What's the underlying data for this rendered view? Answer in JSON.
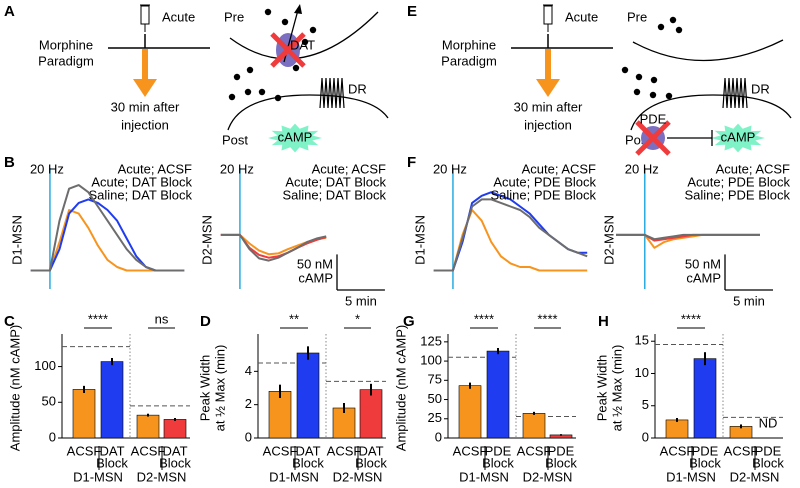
{
  "diagrams": [
    {
      "letter": "A",
      "treatment": "Acute",
      "paradigm": [
        "Morphine",
        "Paradigm"
      ],
      "timing": [
        "30 min after",
        "injection"
      ],
      "pre": "Pre",
      "post": "Post",
      "target": "DAT",
      "receptor": "DR",
      "messenger": "cAMP"
    },
    {
      "letter": "E",
      "treatment": "Acute",
      "paradigm": [
        "Morphine",
        "Paradigm"
      ],
      "timing": [
        "30 min after",
        "injection"
      ],
      "pre": "Pre",
      "post": "Post",
      "target": "PDE",
      "receptor": "DR",
      "messenger": "cAMP"
    }
  ],
  "chart_data": [
    {
      "type": "line",
      "panel": "B",
      "stim_label": "20 Hz",
      "ylabel": "D1-MSN",
      "x": [
        -2,
        -1,
        0,
        1,
        2,
        3,
        4,
        5,
        6,
        7,
        8,
        9,
        10,
        11,
        12,
        13,
        14
      ],
      "xlim": [
        -2.6,
        14.6
      ],
      "ylim": [
        -40,
        130
      ],
      "series": [
        {
          "name": "Acute; ACSF",
          "color": "#f7941d",
          "values": [
            0,
            0,
            0,
            40,
            85,
            80,
            60,
            35,
            15,
            5,
            0,
            0,
            0,
            0,
            0,
            0,
            0
          ]
        },
        {
          "name": "Acute; DAT Block",
          "color": "#1f3cf0",
          "values": [
            0,
            0,
            0,
            30,
            80,
            95,
            100,
            95,
            85,
            70,
            45,
            20,
            5,
            0,
            0,
            0,
            0
          ]
        },
        {
          "name": "Saline; DAT Block",
          "color": "#6d6d6d",
          "values": [
            0,
            0,
            0,
            70,
            115,
            120,
            110,
            90,
            70,
            50,
            30,
            15,
            5,
            0,
            0,
            0,
            0
          ]
        }
      ]
    },
    {
      "type": "line",
      "stim_label": "20 Hz",
      "ylabel": "D2-MSN",
      "x": [
        -2,
        -1,
        0,
        1,
        2,
        3,
        4,
        5,
        6,
        7,
        8,
        9
      ],
      "xlim": [
        -2.6,
        9.4
      ],
      "ylim": [
        -90,
        80
      ],
      "series": [
        {
          "name": "Acute; ACSF",
          "color": "#f7941d",
          "values": [
            0,
            0,
            0,
            -12,
            -22,
            -27,
            -26,
            -20,
            -15,
            -10,
            -6,
            -4
          ]
        },
        {
          "name": "Acute; DAT Block",
          "color": "#ef3b3b",
          "values": [
            0,
            0,
            0,
            -18,
            -28,
            -32,
            -30,
            -25,
            -18,
            -12,
            -7,
            -3
          ]
        },
        {
          "name": "Saline; DAT Block",
          "color": "#6d6d6d",
          "values": [
            0,
            0,
            0,
            -20,
            -33,
            -36,
            -32,
            -25,
            -18,
            -10,
            -5,
            -2
          ]
        }
      ],
      "scale_bar": {
        "y_value": 50,
        "y_label": [
          "50 nM",
          "cAMP"
        ],
        "x_value": 5,
        "x_label": "5 min"
      }
    },
    {
      "type": "line",
      "panel": "F",
      "stim_label": "20 Hz",
      "ylabel": "D1-MSN",
      "x": [
        -2,
        -1,
        0,
        1,
        2,
        3,
        4,
        5,
        6,
        7,
        8,
        9,
        10,
        11,
        12,
        13,
        14
      ],
      "xlim": [
        -2.6,
        14.6
      ],
      "ylim": [
        -40,
        130
      ],
      "series": [
        {
          "name": "Acute; ACSF",
          "color": "#f7941d",
          "values": [
            0,
            0,
            0,
            50,
            85,
            70,
            40,
            20,
            10,
            5,
            5,
            0,
            0,
            0,
            0,
            0,
            0
          ]
        },
        {
          "name": "Acute; PDE Block",
          "color": "#1f3cf0",
          "values": [
            0,
            0,
            0,
            40,
            95,
            105,
            110,
            105,
            100,
            90,
            80,
            65,
            50,
            40,
            30,
            25,
            25
          ]
        },
        {
          "name": "Saline; PDE Block",
          "color": "#6d6d6d",
          "values": [
            0,
            0,
            0,
            45,
            90,
            100,
            100,
            95,
            90,
            85,
            75,
            60,
            50,
            40,
            30,
            25,
            20
          ]
        }
      ]
    },
    {
      "type": "line",
      "stim_label": "20 Hz",
      "ylabel": "D2-MSN",
      "x": [
        -3,
        -2,
        -1,
        0,
        1,
        2,
        3,
        4,
        5,
        6,
        7,
        8,
        9,
        10,
        11,
        12
      ],
      "xlim": [
        -3.1,
        12
      ],
      "ylim": [
        -90,
        80
      ],
      "series": [
        {
          "name": "Acute; ACSF",
          "color": "#f7941d",
          "values": [
            0,
            0,
            0,
            0,
            -18,
            -10,
            -6,
            -4,
            -2,
            0,
            0,
            0,
            0,
            0,
            0,
            0
          ]
        },
        {
          "name": "Acute; PDE Block",
          "color": "#ef3b3b",
          "values": [
            0,
            0,
            0,
            0,
            -8,
            -6,
            -4,
            -2,
            0,
            0,
            0,
            0,
            0,
            0,
            0,
            0
          ]
        },
        {
          "name": "Saline; PDE Block",
          "color": "#6d6d6d",
          "values": [
            0,
            0,
            0,
            0,
            -6,
            -4,
            -2,
            0,
            0,
            0,
            0,
            0,
            0,
            0,
            0,
            0
          ]
        }
      ],
      "scale_bar": {
        "y_value": 50,
        "y_label": [
          "50 nM",
          "cAMP"
        ],
        "x_value": 5,
        "x_label": "5 min"
      }
    },
    {
      "type": "bar",
      "panel": "C",
      "ylabel": [
        "Amplitude (nM cAMP)"
      ],
      "ylim": [
        0,
        140
      ],
      "yticks": [
        0,
        50,
        100
      ],
      "groups": [
        {
          "name": "D1-MSN",
          "categories": [
            [
              "ACSF"
            ],
            [
              "DAT",
              "Block"
            ]
          ],
          "colors": [
            "#f7941d",
            "#1f3cf0"
          ],
          "values": [
            68,
            107
          ],
          "errors": [
            5,
            5
          ],
          "reference": 128,
          "significance": "****"
        },
        {
          "name": "D2-MSN",
          "categories": [
            [
              "ACSF"
            ],
            [
              "DAT",
              "Block"
            ]
          ],
          "colors": [
            "#f7941d",
            "#ef3b3b"
          ],
          "values": [
            32,
            26
          ],
          "errors": [
            2,
            2
          ],
          "reference": 45,
          "significance": "ns"
        }
      ]
    },
    {
      "type": "bar",
      "panel": "D",
      "ylabel": [
        "Peak Width",
        "at ½ Max (min)"
      ],
      "ylim": [
        0,
        6
      ],
      "yticks": [
        0,
        2,
        4
      ],
      "groups": [
        {
          "name": "D1-MSN",
          "categories": [
            [
              "ACSF"
            ],
            [
              "DAT",
              "Block"
            ]
          ],
          "colors": [
            "#f7941d",
            "#1f3cf0"
          ],
          "values": [
            2.8,
            5.1
          ],
          "errors": [
            0.4,
            0.4
          ],
          "reference": 4.5,
          "significance": "**"
        },
        {
          "name": "D2-MSN",
          "categories": [
            [
              "ACSF"
            ],
            [
              "DAT",
              "Block"
            ]
          ],
          "colors": [
            "#f7941d",
            "#ef3b3b"
          ],
          "values": [
            1.8,
            2.9
          ],
          "errors": [
            0.3,
            0.35
          ],
          "reference": 3.4,
          "significance": "*"
        }
      ]
    },
    {
      "type": "bar",
      "panel": "G",
      "ylabel": [
        "Amplitude (nM cAMP)"
      ],
      "ylim": [
        0,
        130
      ],
      "yticks": [
        0,
        25,
        50,
        75,
        100,
        125
      ],
      "groups": [
        {
          "name": "D1-MSN",
          "categories": [
            [
              "ACSF"
            ],
            [
              "PDE",
              "Block"
            ]
          ],
          "colors": [
            "#f7941d",
            "#1f3cf0"
          ],
          "values": [
            68,
            113
          ],
          "errors": [
            4,
            4
          ],
          "reference": 105,
          "significance": "****"
        },
        {
          "name": "D2-MSN",
          "categories": [
            [
              "ACSF"
            ],
            [
              "PDE",
              "Block"
            ]
          ],
          "colors": [
            "#f7941d",
            "#ef3b3b"
          ],
          "values": [
            32,
            4
          ],
          "errors": [
            2,
            1
          ],
          "reference": 28,
          "significance": "****"
        }
      ]
    },
    {
      "type": "bar",
      "panel": "H",
      "ylabel": [
        "Peak Width",
        "at ½ Max (min)"
      ],
      "ylim": [
        0,
        15.5
      ],
      "yticks": [
        0,
        5,
        10,
        15
      ],
      "groups": [
        {
          "name": "D1-MSN",
          "categories": [
            [
              "ACSF"
            ],
            [
              "PDE",
              "Block"
            ]
          ],
          "colors": [
            "#f7941d",
            "#1f3cf0"
          ],
          "values": [
            2.8,
            12.3
          ],
          "errors": [
            0.3,
            1.0
          ],
          "reference": 14.5,
          "significance": "****"
        },
        {
          "name": "D2-MSN",
          "categories": [
            [
              "ACSF"
            ],
            [
              "PDE",
              "Block"
            ]
          ],
          "colors": [
            "#f7941d",
            "#ef3b3b"
          ],
          "values": [
            1.8,
            null
          ],
          "errors": [
            0.3,
            null
          ],
          "value_labels": [
            null,
            "ND"
          ],
          "reference": 3.2
        }
      ]
    }
  ]
}
